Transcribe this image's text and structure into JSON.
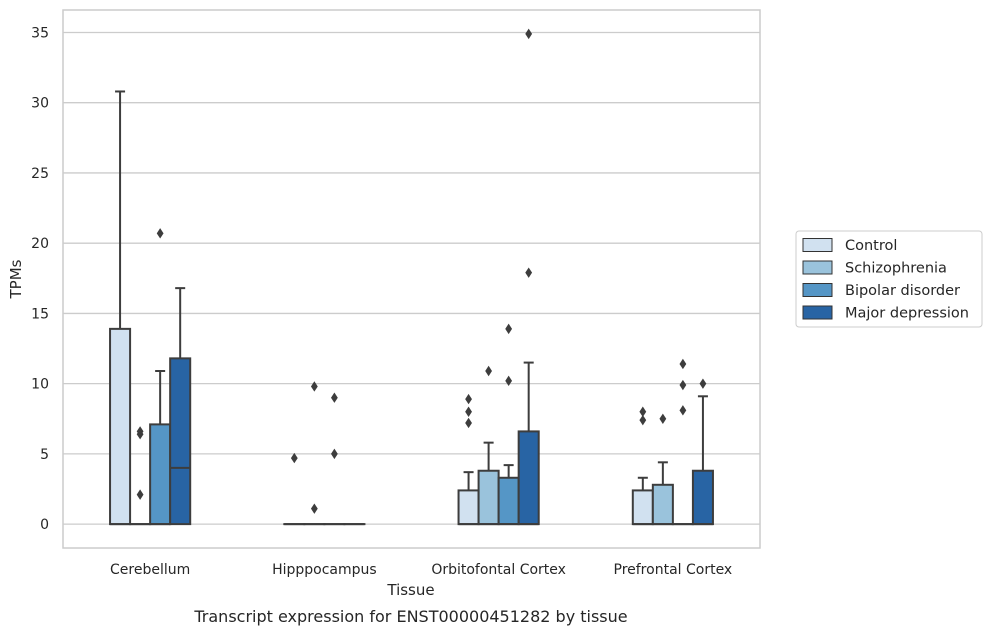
{
  "chart_data": {
    "type": "box",
    "xlabel": "Tissue",
    "ylabel": "TPMs",
    "caption": "Transcript expression for ENST00000451282 by tissue",
    "ylim": [
      -1.7,
      36.6
    ],
    "yticks": [
      0,
      5,
      10,
      15,
      20,
      25,
      30,
      35
    ],
    "grid": "horizontal",
    "legend_position": "right",
    "categories": [
      "Cerebellum",
      "Hipppocampus",
      "Orbitofontal Cortex",
      "Prefrontal Cortex"
    ],
    "series": [
      {
        "name": "Control",
        "color": "#d1e1f0",
        "boxes": [
          {
            "q1": 0,
            "median": 0,
            "q3": 13.9,
            "whisker_low": 0,
            "whisker_high": 30.8,
            "outliers": []
          },
          {
            "q1": 0,
            "median": 0,
            "q3": 0,
            "whisker_low": 0,
            "whisker_high": 0,
            "outliers": [
              4.7
            ]
          },
          {
            "q1": 0,
            "median": 0,
            "q3": 2.4,
            "whisker_low": 0,
            "whisker_high": 3.7,
            "outliers": [
              7.2,
              8.0,
              8.9
            ]
          },
          {
            "q1": 0,
            "median": 0,
            "q3": 2.4,
            "whisker_low": 0,
            "whisker_high": 3.3,
            "outliers": [
              7.4,
              8.0
            ]
          }
        ]
      },
      {
        "name": "Schizophrenia",
        "color": "#9ac3dc",
        "boxes": [
          {
            "q1": 0,
            "median": 0,
            "q3": 0,
            "whisker_low": 0,
            "whisker_high": 0,
            "outliers": [
              2.1,
              6.4,
              6.6
            ]
          },
          {
            "q1": 0,
            "median": 0,
            "q3": 0,
            "whisker_low": 0,
            "whisker_high": 0,
            "outliers": [
              1.1,
              9.8
            ]
          },
          {
            "q1": 0,
            "median": 0,
            "q3": 3.8,
            "whisker_low": 0,
            "whisker_high": 5.8,
            "outliers": [
              10.9
            ]
          },
          {
            "q1": 0,
            "median": 0,
            "q3": 2.8,
            "whisker_low": 0,
            "whisker_high": 4.4,
            "outliers": [
              7.5
            ]
          }
        ]
      },
      {
        "name": "Bipolar disorder",
        "color": "#5596c6",
        "boxes": [
          {
            "q1": 0,
            "median": 0,
            "q3": 7.1,
            "whisker_low": 0,
            "whisker_high": 10.9,
            "outliers": [
              20.7
            ]
          },
          {
            "q1": 0,
            "median": 0,
            "q3": 0,
            "whisker_low": 0,
            "whisker_high": 0,
            "outliers": [
              5.0,
              9.0
            ]
          },
          {
            "q1": 0,
            "median": 0,
            "q3": 3.3,
            "whisker_low": 0,
            "whisker_high": 4.2,
            "outliers": [
              10.2,
              13.9
            ]
          },
          {
            "q1": 0,
            "median": 0,
            "q3": 0,
            "whisker_low": 0,
            "whisker_high": 0,
            "outliers": [
              8.1,
              9.9,
              11.4
            ]
          }
        ]
      },
      {
        "name": "Major depression",
        "color": "#2864a4",
        "boxes": [
          {
            "q1": 0,
            "median": 4.0,
            "q3": 11.8,
            "whisker_low": 0,
            "whisker_high": 16.8,
            "outliers": []
          },
          {
            "q1": 0,
            "median": 0,
            "q3": 0,
            "whisker_low": 0,
            "whisker_high": 0,
            "outliers": []
          },
          {
            "q1": 0,
            "median": 0,
            "q3": 6.6,
            "whisker_low": 0,
            "whisker_high": 11.5,
            "outliers": [
              17.9,
              34.9
            ]
          },
          {
            "q1": 0,
            "median": 0,
            "q3": 3.8,
            "whisker_low": 0,
            "whisker_high": 9.1,
            "outliers": [
              10.0
            ]
          }
        ]
      }
    ]
  }
}
